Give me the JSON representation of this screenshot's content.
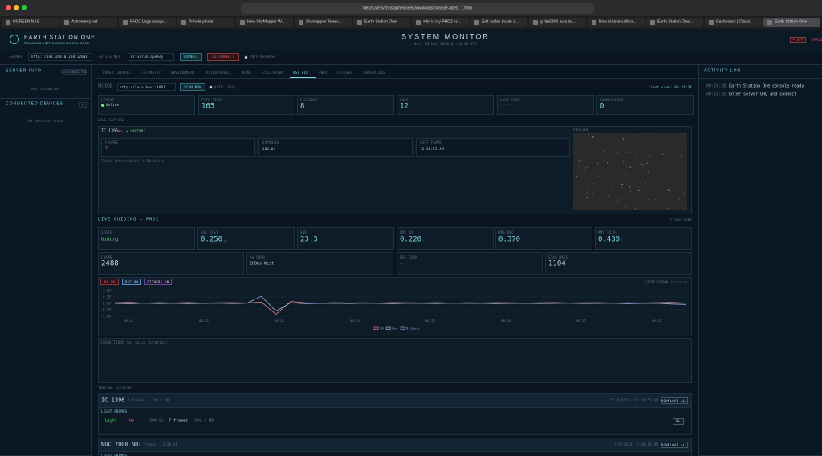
{
  "browser": {
    "url": "file:///Users/christopherrose/Downloads/console-latest_1.html",
    "tabs": [
      "UGREEN NAS",
      "Astrometry.net",
      "PHD2 Loga nalays...",
      "Pi-hole pihole",
      "How SkyMapper W...",
      "Skymapper Telesc...",
      "Earth Station One",
      "why is my PHD2 sc...",
      "Exit nodes (route a...",
      "gl-be9300 as a tai...",
      "How to take calibra...",
      "Earth Station One...",
      "Dashboard | Claud...",
      "Earth Station One"
    ]
  },
  "header": {
    "brand": "EARTH STATION ONE",
    "subtitle": "PEGASUS ASTRO MISSION CONSOLE",
    "title": "SYSTEM MONITOR",
    "datetime": "Sat, 10 May 2026 01:26:28 UTC",
    "status_button": "• OFF",
    "status": "OFFLINE"
  },
  "connection": {
    "server_label": "SERVER",
    "server_url": "http://192.168.0.140:12000",
    "key_label": "DEVICE KEY",
    "key": "DriverUniqueKey",
    "connect": "CONNECT",
    "disconnect": "DISCONNECT",
    "auto_refresh": "AUTO-REFRESH"
  },
  "sidebar": {
    "server_info": "SERVER INFO",
    "badge": "DISCONNECTED",
    "not_connected": "Not connected",
    "devices_title": "CONNECTED DEVICES",
    "devices_count": 0,
    "no_devices": "No devices found"
  },
  "tabs": [
    "POWER CONTROL",
    "TELEMETRY",
    "ENVIRONMENT",
    "ASTROPHYSIC",
    "NINA",
    "STELLARIUM",
    "ASI AIR",
    "PHD2",
    "FOCUSER",
    "SERVER LOG"
  ],
  "bridge": {
    "label": "BRIDGE",
    "url": "http://localhost:3001",
    "scan": "SCAN NOW",
    "auto": "AUTO (30s)",
    "last_scan": "Last scan: 08:23:34"
  },
  "stats": [
    {
      "label": "STATUS",
      "value": "Online"
    },
    {
      "label": "FITS FILES",
      "value": 165
    },
    {
      "label": "SESSIONS",
      "value": 8
    },
    {
      "label": "LOGS",
      "value": 12
    },
    {
      "label": "LAST SCAN",
      "value": "--:--"
    },
    {
      "label": "DOWNLOADING",
      "value": 0
    }
  ],
  "live_capture": {
    "section": "LIVE CAPTURE",
    "target": "IC 1396",
    "filter": "Ha",
    "state": "• CAPTURE",
    "cards": [
      {
        "label": "FRAMES",
        "value": 7
      },
      {
        "label": "EXPOSURE",
        "value": "300.0s"
      },
      {
        "label": "LAST FRAME",
        "value": "12:28:53 AM"
      }
    ],
    "note": "Total integration: 0.58 hours",
    "preview": "PREVIEW"
  },
  "guiding": {
    "section": "LIVE GUIDING — PHD2",
    "frame_caption": "Frame 2488",
    "cards": [
      {
        "label": "STATE",
        "value": "Guiding"
      },
      {
        "label": "AVG DIST",
        "value": "0.250",
        "unit": "px"
      },
      {
        "label": "SNR",
        "value": 23.3
      },
      {
        "label": "RMS RA",
        "value": "0.220",
        "unit": "\""
      },
      {
        "label": "RMS DEC",
        "value": "0.370",
        "unit": "\""
      },
      {
        "label": "RMS TOTAL",
        "value": "0.430",
        "unit": "\""
      }
    ],
    "cards2": [
      {
        "label": "FRAME",
        "value": 2488
      },
      {
        "label": "RA CORR",
        "value": "200ms West"
      },
      {
        "label": "DEC CORR",
        "value": "–"
      },
      {
        "label": "STAR MASS",
        "value": 1104
      }
    ]
  },
  "guide_chart": {
    "type": "line",
    "title": "GUIDE ERROR (arcsec)",
    "toggles": [
      "RA ON",
      "DEC ON",
      "DITHERS ON"
    ],
    "xtick_labels": [
      "00:21",
      "00:22",
      "00:23",
      "00:24",
      "00:25",
      "00:26",
      "00:27",
      "00:28"
    ],
    "ylim": [
      -1,
      1
    ],
    "yticks": [
      {
        "value": 1,
        "label": "1.00\""
      },
      {
        "value": 0.5,
        "label": "0.50\""
      },
      {
        "value": 0,
        "label": "0.00\""
      },
      {
        "value": -0.5,
        "label": "-0.50\""
      },
      {
        "value": -1,
        "label": "-1.00\""
      }
    ],
    "grid": true,
    "series": [
      {
        "name": "RA",
        "color": "#e08080",
        "values": [
          0.05,
          0.08,
          0.02,
          0.06,
          0.04,
          0.07,
          0.03,
          0.05,
          0.06,
          0.04,
          0.1,
          -0.85,
          0.15,
          0.05,
          0.02,
          0.06,
          0.04,
          0.05,
          0.03,
          0.07,
          0.05,
          0.04,
          0.06,
          0.02,
          0.05,
          0.04,
          0.06,
          0.05,
          0.03,
          0.05,
          0.07,
          0.04,
          0.05,
          0.06,
          0.03,
          0.05,
          0.04,
          0.06,
          0.08,
          0.02
        ]
      },
      {
        "name": "Dec",
        "color": "#9fb4e6",
        "values": [
          0.0,
          -0.03,
          0.02,
          -0.01,
          0.01,
          -0.02,
          0.0,
          0.02,
          -0.01,
          0.01,
          0.55,
          -0.6,
          0.05,
          -0.02,
          0.0,
          0.01,
          -0.01,
          0.02,
          0.0,
          -0.02,
          0.01,
          0.0,
          -0.01,
          0.02,
          0.0,
          0.01,
          -0.02,
          0.0,
          0.01,
          -0.01,
          0.0,
          0.02,
          -0.01,
          0.0,
          0.01,
          -0.02,
          0.0,
          0.01,
          -0.05,
          -0.08
        ]
      }
    ],
    "dithers_label": "Dithers",
    "dithers_color": "#b28ae0",
    "corrections_title": "CORRECTIONS (ms pulse duration)"
  },
  "sessions": {
    "title": "IMAGING SESSIONS",
    "items": [
      {
        "name": "IC 1396",
        "summary": "7 frames · 348.4 MB",
        "date": "5/10/2026, 12:28:53 AM",
        "download": "DOWNLOAD ALL",
        "group": "LIGHT FRAMES",
        "rows": [
          {
            "type": "Light",
            "filter": "Ha",
            "exposure": "300.0s",
            "count": "7 frames",
            "size": "348.4 MB",
            "action": "DL"
          }
        ]
      },
      {
        "name": "NGC 7000 NB",
        "summary": "86 frames · 3.26 GB",
        "date": "5/9/2026, 2:48:58 AM",
        "download": "DOWNLOAD ALL",
        "group": "LIGHT FRAMES"
      }
    ]
  },
  "activity_log": {
    "title": "ACTIVITY LOG",
    "entries": [
      {
        "time": "00:24:28",
        "message": "Earth Station One console ready"
      },
      {
        "time": "00:24:28",
        "message": "Enter server URL and connect"
      }
    ]
  }
}
